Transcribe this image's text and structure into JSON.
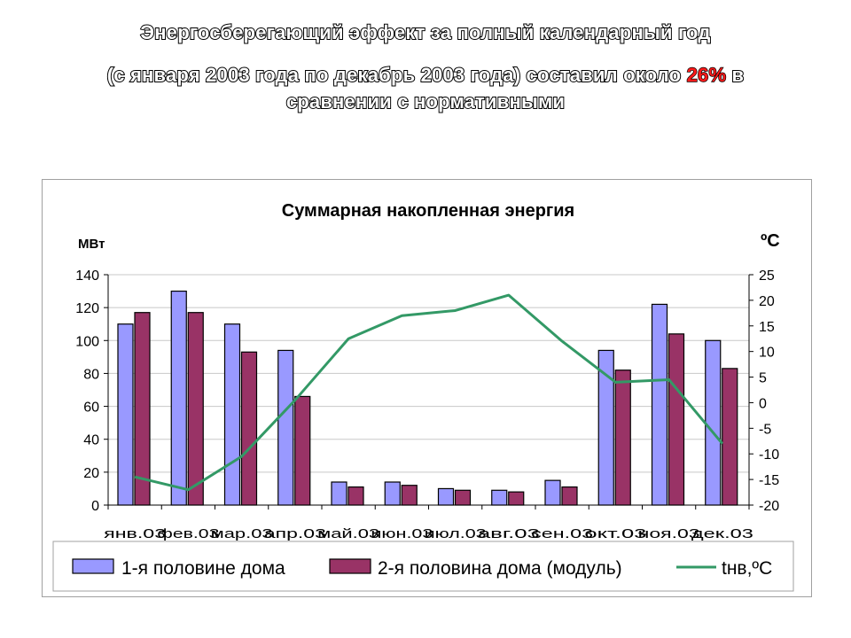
{
  "slide": {
    "title_line1": "Энергосберегающий эффект за полный календарный год",
    "title_line2_pre": "(с января 2003 года по декабрь 2003 года) составил около ",
    "title_line2_pct": "26%",
    "title_line2_post": " в",
    "title_line3": "сравнении с нормативными"
  },
  "chart_data": {
    "type": "bar",
    "title": "Суммарная накопленная энергия",
    "ylabel": "МВт",
    "y2label": "ºС",
    "categories": [
      "янв.03",
      "фев.03",
      "мар.03",
      "апр.03",
      "май.03",
      "июн.03",
      "июл.03",
      "авг.03",
      "сен.03",
      "окт.03",
      "ноя.03",
      "дек.03"
    ],
    "ylim": [
      0,
      140
    ],
    "yticks": [
      "0",
      "20",
      "40",
      "60",
      "80",
      "100",
      "120",
      "140"
    ],
    "y2lim": [
      -20,
      25
    ],
    "y2ticks": [
      "-20",
      "-15",
      "-10",
      "-5",
      "0",
      "5",
      "10",
      "15",
      "20",
      "25"
    ],
    "series": [
      {
        "name": "1-я половине дома",
        "type": "bar",
        "color": "#9999ff",
        "axis": "left",
        "values": [
          110,
          130,
          110,
          94,
          14,
          14,
          10,
          9,
          15,
          94,
          122,
          100
        ]
      },
      {
        "name": "2-я половина дома (модуль)",
        "type": "bar",
        "color": "#993366",
        "axis": "left",
        "values": [
          117,
          117,
          93,
          66,
          11,
          12,
          9,
          8,
          11,
          82,
          104,
          83
        ]
      },
      {
        "name": "tнв,ºС",
        "type": "line",
        "color": "#339966",
        "axis": "right",
        "values": [
          -14.5,
          -17,
          -10.5,
          0.5,
          12.5,
          17,
          18,
          21,
          12,
          4,
          4.5,
          -8
        ]
      }
    ],
    "grid": true,
    "legend": "bottom"
  }
}
